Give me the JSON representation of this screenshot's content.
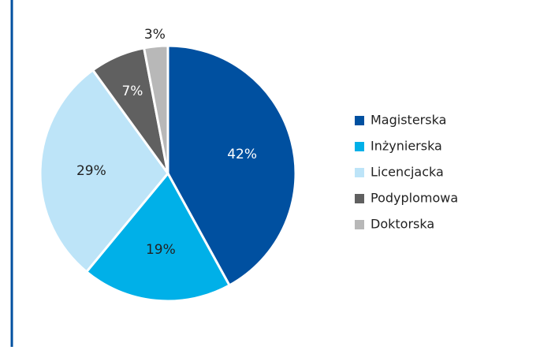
{
  "chart_data": {
    "type": "pie",
    "categories": [
      "Magisterska",
      "Inżynierska",
      "Licencjacka",
      "Podyplomowa",
      "Doktorska"
    ],
    "values": [
      42,
      19,
      29,
      7,
      3
    ],
    "value_labels": [
      "42%",
      "19%",
      "29%",
      "7%",
      "3%"
    ],
    "colors": [
      "#0050a0",
      "#00b0e8",
      "#bde4f8",
      "#606060",
      "#b8b8b8"
    ],
    "label_colors": [
      "#ffffff",
      "#222222",
      "#222222",
      "#ffffff",
      "#222222"
    ],
    "legend": "right"
  }
}
